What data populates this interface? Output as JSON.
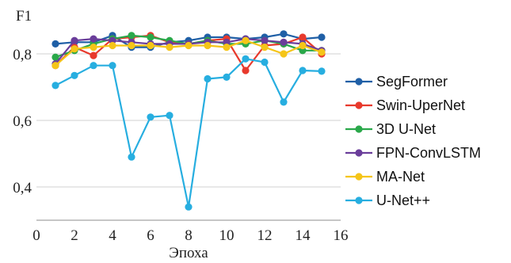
{
  "chart_data": {
    "type": "line",
    "ylabel": "F1",
    "xlabel": "Эпоха",
    "xlim": [
      0,
      16
    ],
    "ylim": [
      0.3,
      0.9
    ],
    "x_ticks": [
      0,
      2,
      4,
      6,
      8,
      10,
      12,
      14,
      16
    ],
    "x_tick_labels": [
      "0",
      "2",
      "4",
      "6",
      "8",
      "10",
      "12",
      "14",
      "16"
    ],
    "y_ticks": [
      0.4,
      0.6,
      0.8
    ],
    "y_tick_labels": [
      "0,4",
      "0,6",
      "0,8"
    ],
    "grid": "horizontal",
    "legend_position": "right",
    "x": [
      1,
      2,
      3,
      4,
      5,
      6,
      7,
      8,
      9,
      10,
      11,
      12,
      13,
      14,
      15
    ],
    "series": [
      {
        "name": "SegFormer",
        "color": "#1f5fa6",
        "values": [
          0.83,
          0.835,
          0.835,
          0.855,
          0.82,
          0.82,
          0.835,
          0.84,
          0.85,
          0.85,
          0.845,
          0.85,
          0.86,
          0.845,
          0.85
        ]
      },
      {
        "name": "Swin-UperNet",
        "color": "#e8392c",
        "values": [
          0.765,
          0.82,
          0.795,
          0.845,
          0.85,
          0.855,
          0.835,
          0.83,
          0.84,
          0.845,
          0.75,
          0.825,
          0.83,
          0.85,
          0.8
        ]
      },
      {
        "name": "3D U-Net",
        "color": "#2aa84a",
        "values": [
          0.79,
          0.81,
          0.83,
          0.845,
          0.855,
          0.85,
          0.84,
          0.83,
          0.84,
          0.83,
          0.83,
          0.84,
          0.83,
          0.81,
          0.81
        ]
      },
      {
        "name": "FPN-ConvLSTM",
        "color": "#6a3d9a",
        "values": [
          0.77,
          0.84,
          0.845,
          0.84,
          0.835,
          0.83,
          0.83,
          0.83,
          0.835,
          0.835,
          0.845,
          0.84,
          0.835,
          0.83,
          0.81
        ]
      },
      {
        "name": "MA-Net",
        "color": "#f5c518",
        "values": [
          0.765,
          0.815,
          0.82,
          0.825,
          0.825,
          0.825,
          0.82,
          0.825,
          0.825,
          0.82,
          0.84,
          0.82,
          0.8,
          0.825,
          0.805
        ]
      },
      {
        "name": "U-Net++",
        "color": "#27aee0",
        "values": [
          0.705,
          0.735,
          0.765,
          0.765,
          0.49,
          0.61,
          0.615,
          0.34,
          0.725,
          0.73,
          0.785,
          0.775,
          0.655,
          0.75,
          0.748
        ]
      }
    ]
  }
}
